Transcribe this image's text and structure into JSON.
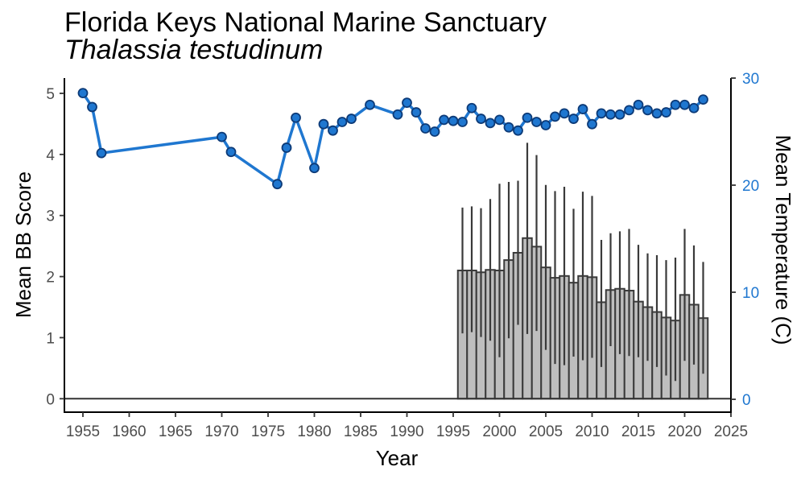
{
  "chart_data": {
    "type": "bar+line",
    "title": "Florida Keys National Marine Sanctuary",
    "subtitle": "Thalassia testudinum",
    "xlabel": "Year",
    "ylabel": "Mean BB Score",
    "y2label": "Mean Temperature (C)",
    "xlim": [
      1953,
      2025
    ],
    "ylim": [
      -0.22,
      5.25
    ],
    "y2lim": [
      -1.2,
      30
    ],
    "x_ticks": [
      1955,
      1960,
      1965,
      1970,
      1975,
      1980,
      1985,
      1990,
      1995,
      2000,
      2005,
      2010,
      2015,
      2020,
      2025
    ],
    "y_ticks": [
      0,
      1,
      2,
      3,
      4,
      5
    ],
    "y2_ticks": [
      0,
      10,
      20,
      30
    ],
    "grid": false,
    "colors": {
      "bars": "#bebebe",
      "bar_border": "#3a3a3a",
      "line": "#1f77d0",
      "point_fill": "#1f77d0",
      "point_border": "#0d3b78",
      "axis2": "#1f77d0"
    },
    "bb_series": {
      "name": "Mean BB Score",
      "points": [
        {
          "x": 1996,
          "y": 2.1,
          "lo": 1.07,
          "hi": 3.13
        },
        {
          "x": 1997,
          "y": 2.1,
          "lo": 1.09,
          "hi": 3.15
        },
        {
          "x": 1998,
          "y": 2.07,
          "lo": 1.01,
          "hi": 3.12
        },
        {
          "x": 1999,
          "y": 2.11,
          "lo": 0.95,
          "hi": 3.27
        },
        {
          "x": 2000,
          "y": 2.1,
          "lo": 0.68,
          "hi": 3.52
        },
        {
          "x": 2001,
          "y": 2.27,
          "lo": 0.99,
          "hi": 3.55
        },
        {
          "x": 2002,
          "y": 2.39,
          "lo": 1.21,
          "hi": 3.57
        },
        {
          "x": 2003,
          "y": 2.63,
          "lo": 1.06,
          "hi": 4.19
        },
        {
          "x": 2004,
          "y": 2.49,
          "lo": 1.11,
          "hi": 3.99
        },
        {
          "x": 2005,
          "y": 2.15,
          "lo": 0.8,
          "hi": 3.5
        },
        {
          "x": 2006,
          "y": 1.98,
          "lo": 0.57,
          "hi": 3.4
        },
        {
          "x": 2007,
          "y": 2.01,
          "lo": 0.55,
          "hi": 3.47
        },
        {
          "x": 2008,
          "y": 1.9,
          "lo": 0.69,
          "hi": 3.11
        },
        {
          "x": 2009,
          "y": 2.01,
          "lo": 0.63,
          "hi": 3.39
        },
        {
          "x": 2010,
          "y": 1.99,
          "lo": 0.67,
          "hi": 3.32
        },
        {
          "x": 2011,
          "y": 1.58,
          "lo": 0.52,
          "hi": 2.6
        },
        {
          "x": 2012,
          "y": 1.78,
          "lo": 0.86,
          "hi": 2.71
        },
        {
          "x": 2013,
          "y": 1.8,
          "lo": 0.73,
          "hi": 2.74
        },
        {
          "x": 2014,
          "y": 1.77,
          "lo": 0.7,
          "hi": 2.78
        },
        {
          "x": 2015,
          "y": 1.59,
          "lo": 0.68,
          "hi": 2.52
        },
        {
          "x": 2016,
          "y": 1.5,
          "lo": 0.62,
          "hi": 2.38
        },
        {
          "x": 2017,
          "y": 1.42,
          "lo": 0.52,
          "hi": 2.35
        },
        {
          "x": 2018,
          "y": 1.33,
          "lo": 0.38,
          "hi": 2.27
        },
        {
          "x": 2019,
          "y": 1.28,
          "lo": 0.29,
          "hi": 2.31
        },
        {
          "x": 2020,
          "y": 1.7,
          "lo": 0.62,
          "hi": 2.78
        },
        {
          "x": 2021,
          "y": 1.54,
          "lo": 0.56,
          "hi": 2.51
        },
        {
          "x": 2022,
          "y": 1.32,
          "lo": 0.41,
          "hi": 2.24
        }
      ]
    },
    "temp_series": {
      "name": "Mean Temperature (C)",
      "points": [
        {
          "x": 1955,
          "y": 28.6
        },
        {
          "x": 1956,
          "y": 27.3
        },
        {
          "x": 1957,
          "y": 23.0
        },
        {
          "x": 1970,
          "y": 24.5
        },
        {
          "x": 1971,
          "y": 23.1
        },
        {
          "x": 1976,
          "y": 20.1
        },
        {
          "x": 1977,
          "y": 23.5
        },
        {
          "x": 1978,
          "y": 26.3
        },
        {
          "x": 1980,
          "y": 21.6
        },
        {
          "x": 1981,
          "y": 25.7
        },
        {
          "x": 1982,
          "y": 25.1
        },
        {
          "x": 1983,
          "y": 25.9
        },
        {
          "x": 1984,
          "y": 26.2
        },
        {
          "x": 1986,
          "y": 27.5
        },
        {
          "x": 1989,
          "y": 26.6
        },
        {
          "x": 1990,
          "y": 27.7
        },
        {
          "x": 1991,
          "y": 26.8
        },
        {
          "x": 1992,
          "y": 25.3
        },
        {
          "x": 1993,
          "y": 25.0
        },
        {
          "x": 1994,
          "y": 26.1
        },
        {
          "x": 1995,
          "y": 26.0
        },
        {
          "x": 1996,
          "y": 25.9
        },
        {
          "x": 1997,
          "y": 27.2
        },
        {
          "x": 1998,
          "y": 26.2
        },
        {
          "x": 1999,
          "y": 25.8
        },
        {
          "x": 2000,
          "y": 26.1
        },
        {
          "x": 2001,
          "y": 25.4
        },
        {
          "x": 2002,
          "y": 25.1
        },
        {
          "x": 2003,
          "y": 26.3
        },
        {
          "x": 2004,
          "y": 25.9
        },
        {
          "x": 2005,
          "y": 25.6
        },
        {
          "x": 2006,
          "y": 26.4
        },
        {
          "x": 2007,
          "y": 26.7
        },
        {
          "x": 2008,
          "y": 26.2
        },
        {
          "x": 2009,
          "y": 27.1
        },
        {
          "x": 2010,
          "y": 25.7
        },
        {
          "x": 2011,
          "y": 26.7
        },
        {
          "x": 2012,
          "y": 26.6
        },
        {
          "x": 2013,
          "y": 26.6
        },
        {
          "x": 2014,
          "y": 27.0
        },
        {
          "x": 2015,
          "y": 27.5
        },
        {
          "x": 2016,
          "y": 27.0
        },
        {
          "x": 2017,
          "y": 26.7
        },
        {
          "x": 2018,
          "y": 26.8
        },
        {
          "x": 2019,
          "y": 27.5
        },
        {
          "x": 2020,
          "y": 27.5
        },
        {
          "x": 2021,
          "y": 27.2
        },
        {
          "x": 2022,
          "y": 28.0
        }
      ]
    }
  }
}
